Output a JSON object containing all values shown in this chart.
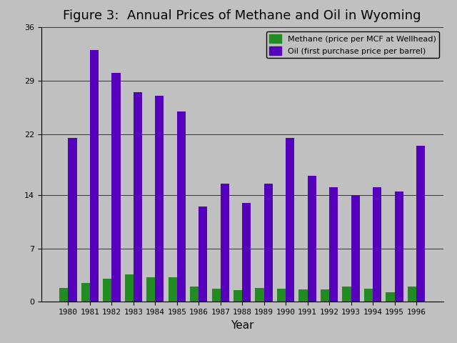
{
  "title": "Figure 3:  Annual Prices of Methane and Oil in Wyoming",
  "xlabel": "Year",
  "years": [
    1980,
    1981,
    1982,
    1983,
    1984,
    1985,
    1986,
    1987,
    1988,
    1989,
    1990,
    1991,
    1992,
    1993,
    1994,
    1995,
    1996
  ],
  "methane": [
    1.8,
    2.5,
    3.0,
    3.6,
    3.2,
    3.2,
    2.0,
    1.7,
    1.5,
    1.8,
    1.7,
    1.6,
    1.6,
    2.0,
    1.7,
    1.3,
    2.0
  ],
  "oil": [
    21.5,
    33.0,
    30.0,
    27.5,
    27.0,
    25.0,
    12.5,
    15.5,
    13.0,
    15.5,
    21.5,
    16.5,
    15.0,
    14.0,
    15.0,
    14.5,
    20.5
  ],
  "methane_color": "#228B22",
  "oil_color": "#5500BB",
  "background_color": "#C0C0C0",
  "plot_bg_color": "#C0C0C0",
  "ylim": [
    0,
    36
  ],
  "yticks": [
    0,
    7,
    14,
    22,
    29,
    36
  ],
  "methane_label": "Methane (price per MCF at Wellhead)",
  "oil_label": "Oil (first purchase price per barrel)",
  "bar_width": 0.4,
  "title_fontsize": 13,
  "axis_fontsize": 11,
  "tick_fontsize": 8,
  "legend_fontsize": 8
}
